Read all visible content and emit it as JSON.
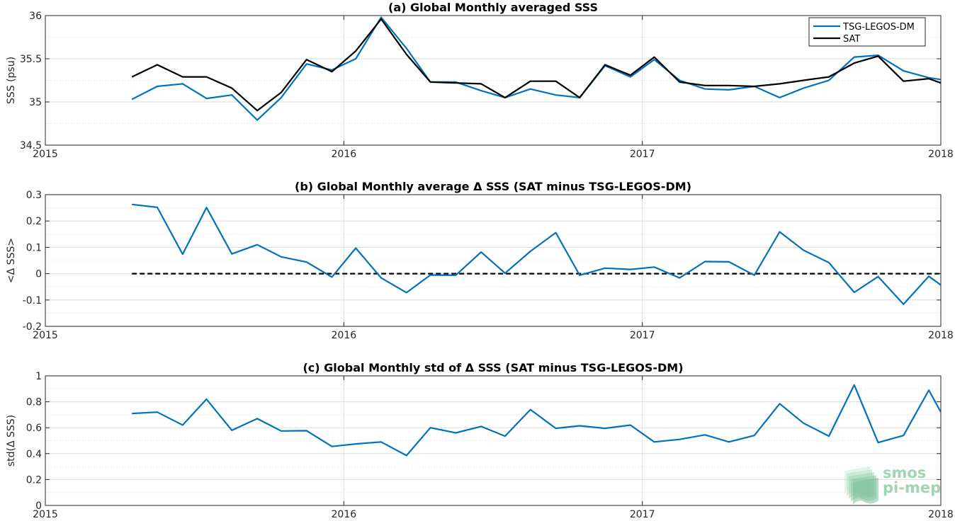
{
  "chart_data": [
    {
      "id": "a",
      "type": "line",
      "title": "(a) Global Monthly averaged SSS",
      "ylabel": "SSS (psu)",
      "xlabel": "",
      "xlim": [
        2015,
        2018
      ],
      "ylim": [
        34.5,
        36
      ],
      "x_ticks": [
        "2015",
        "2016",
        "2017",
        "2018"
      ],
      "y_ticks": [
        "34.5",
        "35",
        "35.5",
        "36"
      ],
      "grid": true,
      "legend": "top-right",
      "x": [
        2015.29,
        2015.375,
        2015.46,
        2015.54,
        2015.625,
        2015.71,
        2015.79,
        2015.875,
        2015.96,
        2016.04,
        2016.125,
        2016.21,
        2016.29,
        2016.375,
        2016.46,
        2016.54,
        2016.625,
        2016.71,
        2016.79,
        2016.875,
        2016.96,
        2017.04,
        2017.125,
        2017.21,
        2017.29,
        2017.375,
        2017.46,
        2017.54,
        2017.625,
        2017.71,
        2017.79,
        2017.875,
        2017.96,
        2018.0
      ],
      "series": [
        {
          "name": "TSG-LEGOS-DM",
          "color": "#0072bd",
          "values": [
            35.03,
            35.18,
            35.21,
            35.04,
            35.08,
            34.79,
            35.05,
            35.44,
            35.37,
            35.5,
            35.98,
            35.62,
            35.23,
            35.23,
            35.13,
            35.05,
            35.15,
            35.08,
            35.05,
            35.42,
            35.29,
            35.49,
            35.25,
            35.15,
            35.14,
            35.18,
            35.05,
            35.16,
            35.25,
            35.52,
            35.54,
            35.36,
            35.28,
            35.26
          ]
        },
        {
          "name": "SAT",
          "color": "#000000",
          "values": [
            35.29,
            35.43,
            35.29,
            35.29,
            35.16,
            34.9,
            35.11,
            35.49,
            35.35,
            35.59,
            35.96,
            35.55,
            35.23,
            35.22,
            35.21,
            35.05,
            35.24,
            35.24,
            35.05,
            35.43,
            35.31,
            35.52,
            35.23,
            35.19,
            35.19,
            35.18,
            35.21,
            35.25,
            35.29,
            35.45,
            35.53,
            35.24,
            35.27,
            35.22
          ]
        }
      ]
    },
    {
      "id": "b",
      "type": "line",
      "title": "(b) Global Monthly average Δ SSS (SAT minus TSG-LEGOS-DM)",
      "ylabel": "<Δ SSS>",
      "xlabel": "",
      "xlim": [
        2015,
        2018
      ],
      "ylim": [
        -0.2,
        0.3
      ],
      "x_ticks": [
        "2015",
        "2016",
        "2017",
        "2018"
      ],
      "y_ticks": [
        "-0.2",
        "-0.1",
        "0",
        "0.1",
        "0.2",
        "0.3"
      ],
      "grid": true,
      "reference_line": {
        "y": 0,
        "style": "dashed",
        "color": "#000000",
        "x_start": 2015.29,
        "x_end": 2018.0
      },
      "x": [
        2015.29,
        2015.375,
        2015.46,
        2015.54,
        2015.625,
        2015.71,
        2015.79,
        2015.875,
        2015.96,
        2016.04,
        2016.125,
        2016.21,
        2016.29,
        2016.375,
        2016.46,
        2016.54,
        2016.625,
        2016.71,
        2016.79,
        2016.875,
        2016.96,
        2017.04,
        2017.125,
        2017.21,
        2017.29,
        2017.375,
        2017.46,
        2017.54,
        2017.625,
        2017.71,
        2017.79,
        2017.875,
        2017.96,
        2018.0
      ],
      "series": [
        {
          "name": "",
          "color": "#0072bd",
          "values": [
            0.263,
            0.252,
            0.074,
            0.251,
            0.075,
            0.11,
            0.064,
            0.044,
            -0.013,
            0.097,
            -0.016,
            -0.072,
            -0.005,
            -0.006,
            0.082,
            0.002,
            0.085,
            0.156,
            -0.006,
            0.021,
            0.016,
            0.025,
            -0.016,
            0.046,
            0.045,
            -0.006,
            0.159,
            0.089,
            0.042,
            -0.071,
            -0.011,
            -0.116,
            -0.01,
            -0.043
          ]
        }
      ]
    },
    {
      "id": "c",
      "type": "line",
      "title": "(c) Global Monthly std of Δ SSS (SAT minus TSG-LEGOS-DM)",
      "ylabel": "std(Δ SSS)",
      "xlabel": "",
      "xlim": [
        2015,
        2018
      ],
      "ylim": [
        0,
        1
      ],
      "x_ticks": [
        "2015",
        "2016",
        "2017",
        "2018"
      ],
      "y_ticks": [
        "0",
        "0.2",
        "0.4",
        "0.6",
        "0.8",
        "1"
      ],
      "grid": true,
      "x": [
        2015.29,
        2015.375,
        2015.46,
        2015.54,
        2015.625,
        2015.71,
        2015.79,
        2015.875,
        2015.96,
        2016.04,
        2016.125,
        2016.21,
        2016.29,
        2016.375,
        2016.46,
        2016.54,
        2016.625,
        2016.71,
        2016.79,
        2016.875,
        2016.96,
        2017.04,
        2017.125,
        2017.21,
        2017.29,
        2017.375,
        2017.46,
        2017.54,
        2017.625,
        2017.71,
        2017.79,
        2017.875,
        2017.96,
        2018.0
      ],
      "series": [
        {
          "name": "",
          "color": "#0072bd",
          "values": [
            0.71,
            0.72,
            0.62,
            0.82,
            0.58,
            0.67,
            0.575,
            0.577,
            0.455,
            0.475,
            0.49,
            0.385,
            0.6,
            0.56,
            0.61,
            0.535,
            0.74,
            0.595,
            0.615,
            0.595,
            0.62,
            0.49,
            0.51,
            0.545,
            0.49,
            0.54,
            0.785,
            0.635,
            0.535,
            0.93,
            0.485,
            0.54,
            0.89,
            0.72
          ]
        }
      ]
    }
  ],
  "watermark": {
    "line1": "smos",
    "line2": "pi-mep"
  }
}
